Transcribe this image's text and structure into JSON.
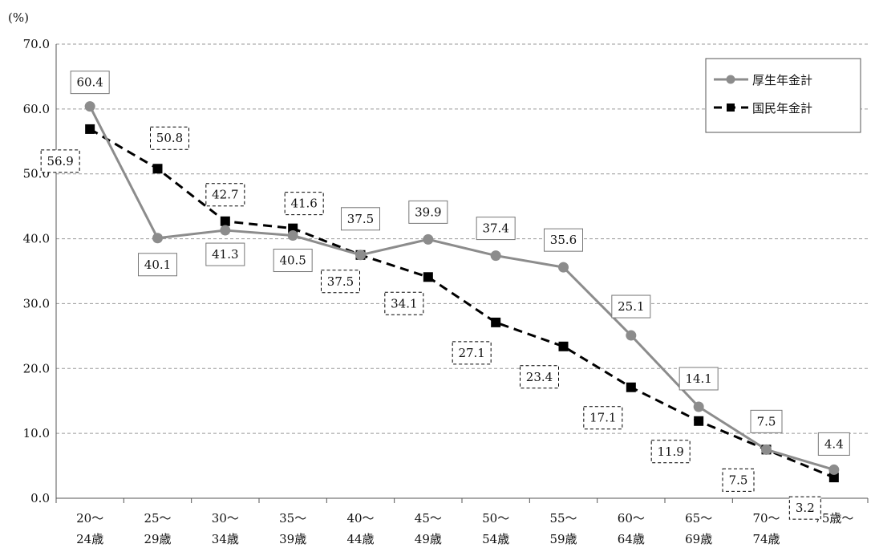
{
  "chart_data": {
    "type": "line",
    "unit_label": "(%)",
    "ylim": [
      0,
      70
    ],
    "yticks": [
      "0.0",
      "10.0",
      "20.0",
      "30.0",
      "40.0",
      "50.0",
      "60.0",
      "70.0"
    ],
    "grid": true,
    "legend_position": "top-right",
    "categories": [
      [
        "20～",
        "24歳"
      ],
      [
        "25～",
        "29歳"
      ],
      [
        "30～",
        "34歳"
      ],
      [
        "35～",
        "39歳"
      ],
      [
        "40～",
        "44歳"
      ],
      [
        "45～",
        "49歳"
      ],
      [
        "50～",
        "54歳"
      ],
      [
        "55～",
        "59歳"
      ],
      [
        "60～",
        "64歳"
      ],
      [
        "65～",
        "69歳"
      ],
      [
        "70～",
        "74歳"
      ],
      [
        "75歳～",
        ""
      ]
    ],
    "series": [
      {
        "name": "厚生年金計",
        "color": "#8c8c8c",
        "marker": "circle",
        "line": "solid",
        "values": [
          60.4,
          40.1,
          41.3,
          40.5,
          37.5,
          39.9,
          37.4,
          35.6,
          25.1,
          14.1,
          7.5,
          4.4
        ],
        "labels": [
          "60.4",
          "40.1",
          "41.3",
          "40.5",
          "37.5",
          "39.9",
          "37.4",
          "35.6",
          "25.1",
          "14.1",
          "7.5",
          "4.4"
        ]
      },
      {
        "name": "国民年金計",
        "color": "#000000",
        "marker": "square",
        "line": "dashed",
        "values": [
          56.9,
          50.8,
          42.7,
          41.6,
          37.5,
          34.1,
          27.1,
          23.4,
          17.1,
          11.9,
          7.5,
          3.2
        ],
        "labels": [
          "56.9",
          "50.8",
          "42.7",
          "41.6",
          "37.5",
          "34.1",
          "27.1",
          "23.4",
          "17.1",
          "11.9",
          "7.5",
          "3.2"
        ]
      }
    ]
  }
}
